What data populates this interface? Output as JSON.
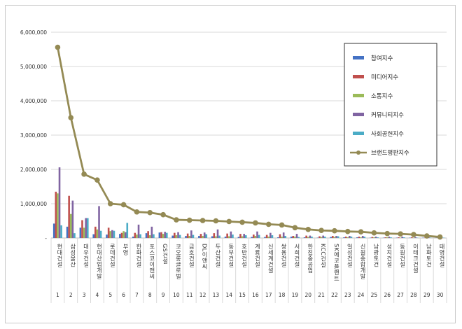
{
  "chart_data": {
    "type": "bar",
    "title": "",
    "xlabel": "",
    "ylabel": "",
    "ylim": [
      0,
      6000000
    ],
    "y_ticks": [
      0,
      1000000,
      2000000,
      3000000,
      4000000,
      5000000,
      6000000
    ],
    "y_tick_labels": [
      "-",
      "1,000,000",
      "2,000,000",
      "3,000,000",
      "4,000,000",
      "5,000,000",
      "6,000,000"
    ],
    "grid": true,
    "legend_position": "top-right",
    "categories": [
      "현대건설",
      "삼성물산",
      "대우건설",
      "현대산업개발",
      "롯데건설",
      "부영",
      "한화건설",
      "포스코이앤씨",
      "GS건설",
      "코오롱글로벌",
      "금호건설",
      "DL이앤씨",
      "두산건설",
      "동부건설",
      "호반건설",
      "계룡건설",
      "신세계건설",
      "쌍용건설",
      "서희건설",
      "한진중공업",
      "KCC건설",
      "SK에코플랜트",
      "일성건설",
      "신원종합개발",
      "남광토건",
      "성지건설",
      "동원건설",
      "이테크건설",
      "남화토건",
      "태영건설"
    ],
    "indices": [
      "1",
      "2",
      "3",
      "4",
      "5",
      "6",
      "7",
      "8",
      "9",
      "10",
      "11",
      "12",
      "13",
      "14",
      "15",
      "16",
      "17",
      "18",
      "19",
      "20",
      "21",
      "22",
      "23",
      "24",
      "25",
      "26",
      "27",
      "28",
      "29",
      "30"
    ],
    "series": [
      {
        "name": "참여지수",
        "color": "#4472c4",
        "kind": "bar",
        "values": [
          420000,
          330000,
          300000,
          110000,
          100000,
          120000,
          40000,
          140000,
          160000,
          70000,
          60000,
          60000,
          50000,
          40000,
          30000,
          30000,
          30000,
          20000,
          40000,
          20000,
          10000,
          30000,
          20000,
          20000,
          10000,
          10000,
          10000,
          10000,
          10000,
          5000
        ]
      },
      {
        "name": "미디어지수",
        "color": "#c0504d",
        "kind": "bar",
        "values": [
          1350000,
          1230000,
          520000,
          330000,
          300000,
          150000,
          150000,
          200000,
          170000,
          150000,
          130000,
          120000,
          140000,
          130000,
          120000,
          100000,
          90000,
          110000,
          60000,
          70000,
          50000,
          60000,
          40000,
          40000,
          30000,
          20000,
          20000,
          20000,
          10000,
          10000
        ]
      },
      {
        "name": "소통지수",
        "color": "#9bbb59",
        "kind": "bar",
        "values": [
          1300000,
          700000,
          300000,
          250000,
          200000,
          200000,
          100000,
          80000,
          120000,
          80000,
          60000,
          60000,
          50000,
          50000,
          50000,
          60000,
          40000,
          40000,
          40000,
          30000,
          30000,
          30000,
          20000,
          20000,
          20000,
          20000,
          10000,
          10000,
          5000,
          5000
        ]
      },
      {
        "name": "커뮤니티지수",
        "color": "#8064a2",
        "kind": "bar",
        "values": [
          2060000,
          1090000,
          580000,
          930000,
          230000,
          170000,
          390000,
          330000,
          180000,
          170000,
          220000,
          160000,
          250000,
          190000,
          120000,
          190000,
          150000,
          160000,
          120000,
          70000,
          70000,
          60000,
          60000,
          60000,
          40000,
          40000,
          40000,
          30000,
          20000,
          10000
        ]
      },
      {
        "name": "사회공헌지수",
        "color": "#4bacc6",
        "kind": "bar",
        "values": [
          370000,
          140000,
          580000,
          210000,
          210000,
          440000,
          110000,
          110000,
          150000,
          90000,
          90000,
          110000,
          70000,
          100000,
          80000,
          90000,
          80000,
          60000,
          30000,
          40000,
          40000,
          50000,
          40000,
          40000,
          20000,
          20000,
          20000,
          10000,
          10000,
          10000
        ]
      },
      {
        "name": "브랜드평판지수",
        "color": "#948a54",
        "kind": "line",
        "values": [
          5560000,
          3510000,
          1860000,
          1690000,
          1000000,
          970000,
          760000,
          740000,
          680000,
          530000,
          520000,
          510000,
          500000,
          480000,
          460000,
          440000,
          400000,
          380000,
          300000,
          250000,
          220000,
          210000,
          190000,
          180000,
          150000,
          130000,
          120000,
          100000,
          60000,
          30000
        ]
      }
    ]
  }
}
